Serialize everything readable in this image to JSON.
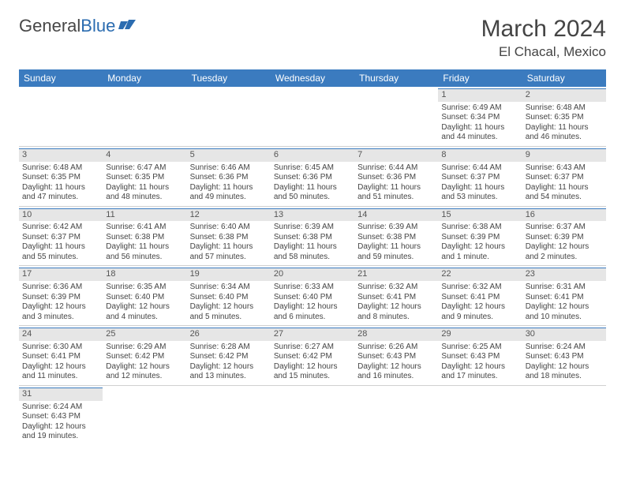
{
  "logo": {
    "part1": "General",
    "part2": "Blue"
  },
  "title": "March 2024",
  "location": "El Chacal, Mexico",
  "colors": {
    "header_bg": "#3b7bbf",
    "header_text": "#ffffff",
    "daynum_bg": "#e6e6e6",
    "text": "#444444",
    "logo_blue": "#2b6cb0"
  },
  "weekdays": [
    "Sunday",
    "Monday",
    "Tuesday",
    "Wednesday",
    "Thursday",
    "Friday",
    "Saturday"
  ],
  "weeks": [
    [
      null,
      null,
      null,
      null,
      null,
      {
        "d": "1",
        "sr": "Sunrise: 6:49 AM",
        "ss": "Sunset: 6:34 PM",
        "dl": "Daylight: 11 hours and 44 minutes."
      },
      {
        "d": "2",
        "sr": "Sunrise: 6:48 AM",
        "ss": "Sunset: 6:35 PM",
        "dl": "Daylight: 11 hours and 46 minutes."
      }
    ],
    [
      {
        "d": "3",
        "sr": "Sunrise: 6:48 AM",
        "ss": "Sunset: 6:35 PM",
        "dl": "Daylight: 11 hours and 47 minutes."
      },
      {
        "d": "4",
        "sr": "Sunrise: 6:47 AM",
        "ss": "Sunset: 6:35 PM",
        "dl": "Daylight: 11 hours and 48 minutes."
      },
      {
        "d": "5",
        "sr": "Sunrise: 6:46 AM",
        "ss": "Sunset: 6:36 PM",
        "dl": "Daylight: 11 hours and 49 minutes."
      },
      {
        "d": "6",
        "sr": "Sunrise: 6:45 AM",
        "ss": "Sunset: 6:36 PM",
        "dl": "Daylight: 11 hours and 50 minutes."
      },
      {
        "d": "7",
        "sr": "Sunrise: 6:44 AM",
        "ss": "Sunset: 6:36 PM",
        "dl": "Daylight: 11 hours and 51 minutes."
      },
      {
        "d": "8",
        "sr": "Sunrise: 6:44 AM",
        "ss": "Sunset: 6:37 PM",
        "dl": "Daylight: 11 hours and 53 minutes."
      },
      {
        "d": "9",
        "sr": "Sunrise: 6:43 AM",
        "ss": "Sunset: 6:37 PM",
        "dl": "Daylight: 11 hours and 54 minutes."
      }
    ],
    [
      {
        "d": "10",
        "sr": "Sunrise: 6:42 AM",
        "ss": "Sunset: 6:37 PM",
        "dl": "Daylight: 11 hours and 55 minutes."
      },
      {
        "d": "11",
        "sr": "Sunrise: 6:41 AM",
        "ss": "Sunset: 6:38 PM",
        "dl": "Daylight: 11 hours and 56 minutes."
      },
      {
        "d": "12",
        "sr": "Sunrise: 6:40 AM",
        "ss": "Sunset: 6:38 PM",
        "dl": "Daylight: 11 hours and 57 minutes."
      },
      {
        "d": "13",
        "sr": "Sunrise: 6:39 AM",
        "ss": "Sunset: 6:38 PM",
        "dl": "Daylight: 11 hours and 58 minutes."
      },
      {
        "d": "14",
        "sr": "Sunrise: 6:39 AM",
        "ss": "Sunset: 6:38 PM",
        "dl": "Daylight: 11 hours and 59 minutes."
      },
      {
        "d": "15",
        "sr": "Sunrise: 6:38 AM",
        "ss": "Sunset: 6:39 PM",
        "dl": "Daylight: 12 hours and 1 minute."
      },
      {
        "d": "16",
        "sr": "Sunrise: 6:37 AM",
        "ss": "Sunset: 6:39 PM",
        "dl": "Daylight: 12 hours and 2 minutes."
      }
    ],
    [
      {
        "d": "17",
        "sr": "Sunrise: 6:36 AM",
        "ss": "Sunset: 6:39 PM",
        "dl": "Daylight: 12 hours and 3 minutes."
      },
      {
        "d": "18",
        "sr": "Sunrise: 6:35 AM",
        "ss": "Sunset: 6:40 PM",
        "dl": "Daylight: 12 hours and 4 minutes."
      },
      {
        "d": "19",
        "sr": "Sunrise: 6:34 AM",
        "ss": "Sunset: 6:40 PM",
        "dl": "Daylight: 12 hours and 5 minutes."
      },
      {
        "d": "20",
        "sr": "Sunrise: 6:33 AM",
        "ss": "Sunset: 6:40 PM",
        "dl": "Daylight: 12 hours and 6 minutes."
      },
      {
        "d": "21",
        "sr": "Sunrise: 6:32 AM",
        "ss": "Sunset: 6:41 PM",
        "dl": "Daylight: 12 hours and 8 minutes."
      },
      {
        "d": "22",
        "sr": "Sunrise: 6:32 AM",
        "ss": "Sunset: 6:41 PM",
        "dl": "Daylight: 12 hours and 9 minutes."
      },
      {
        "d": "23",
        "sr": "Sunrise: 6:31 AM",
        "ss": "Sunset: 6:41 PM",
        "dl": "Daylight: 12 hours and 10 minutes."
      }
    ],
    [
      {
        "d": "24",
        "sr": "Sunrise: 6:30 AM",
        "ss": "Sunset: 6:41 PM",
        "dl": "Daylight: 12 hours and 11 minutes."
      },
      {
        "d": "25",
        "sr": "Sunrise: 6:29 AM",
        "ss": "Sunset: 6:42 PM",
        "dl": "Daylight: 12 hours and 12 minutes."
      },
      {
        "d": "26",
        "sr": "Sunrise: 6:28 AM",
        "ss": "Sunset: 6:42 PM",
        "dl": "Daylight: 12 hours and 13 minutes."
      },
      {
        "d": "27",
        "sr": "Sunrise: 6:27 AM",
        "ss": "Sunset: 6:42 PM",
        "dl": "Daylight: 12 hours and 15 minutes."
      },
      {
        "d": "28",
        "sr": "Sunrise: 6:26 AM",
        "ss": "Sunset: 6:43 PM",
        "dl": "Daylight: 12 hours and 16 minutes."
      },
      {
        "d": "29",
        "sr": "Sunrise: 6:25 AM",
        "ss": "Sunset: 6:43 PM",
        "dl": "Daylight: 12 hours and 17 minutes."
      },
      {
        "d": "30",
        "sr": "Sunrise: 6:24 AM",
        "ss": "Sunset: 6:43 PM",
        "dl": "Daylight: 12 hours and 18 minutes."
      }
    ],
    [
      {
        "d": "31",
        "sr": "Sunrise: 6:24 AM",
        "ss": "Sunset: 6:43 PM",
        "dl": "Daylight: 12 hours and 19 minutes."
      },
      null,
      null,
      null,
      null,
      null,
      null
    ]
  ]
}
